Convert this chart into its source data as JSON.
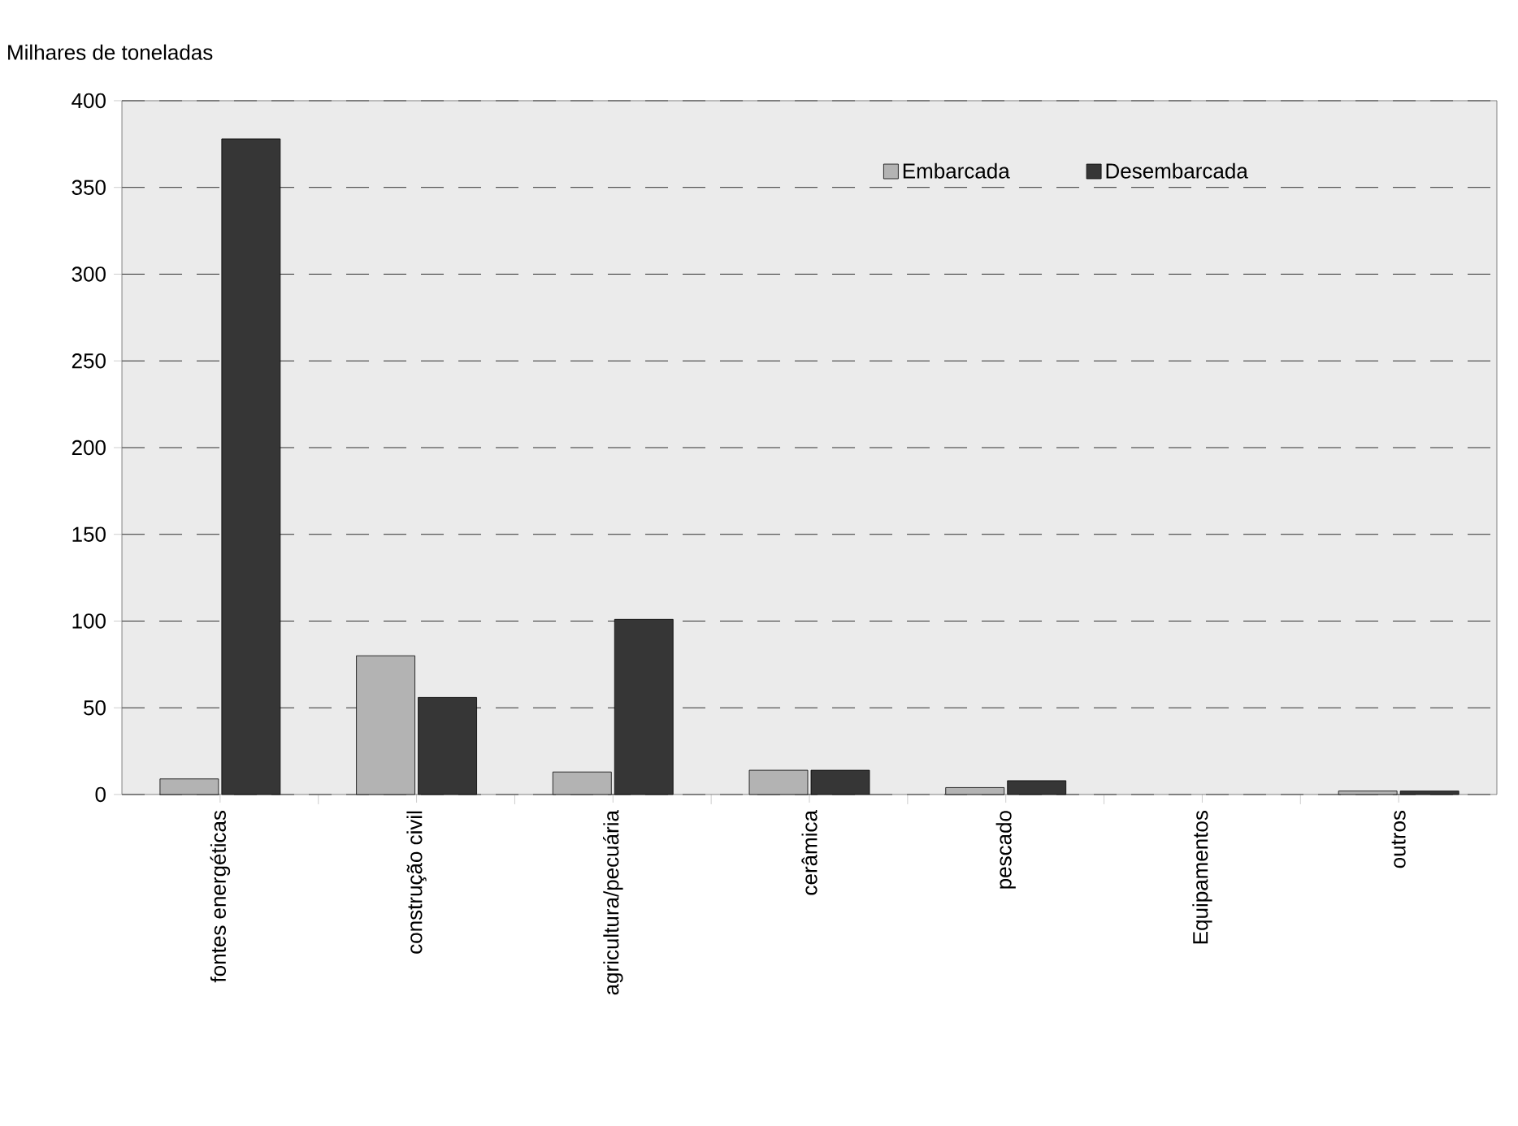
{
  "chart_data": {
    "type": "bar",
    "ylabel": "Milhares de toneladas",
    "categories": [
      "fontes energéticas",
      "construção civil",
      "agricultura/pecuária",
      "cerâmica",
      "pescado",
      "Equipamentos",
      "outros"
    ],
    "series": [
      {
        "name": "Embarcada",
        "color": "#b3b3b3",
        "values": [
          9,
          80,
          13,
          14,
          4,
          0,
          2
        ]
      },
      {
        "name": "Desembarcada",
        "color": "#363636",
        "values": [
          378,
          56,
          101,
          14,
          8,
          0,
          2
        ]
      }
    ],
    "ylim": [
      0,
      400
    ],
    "yticks": [
      0,
      50,
      100,
      150,
      200,
      250,
      300,
      350,
      400
    ],
    "grid": "y",
    "legend": "top right"
  }
}
